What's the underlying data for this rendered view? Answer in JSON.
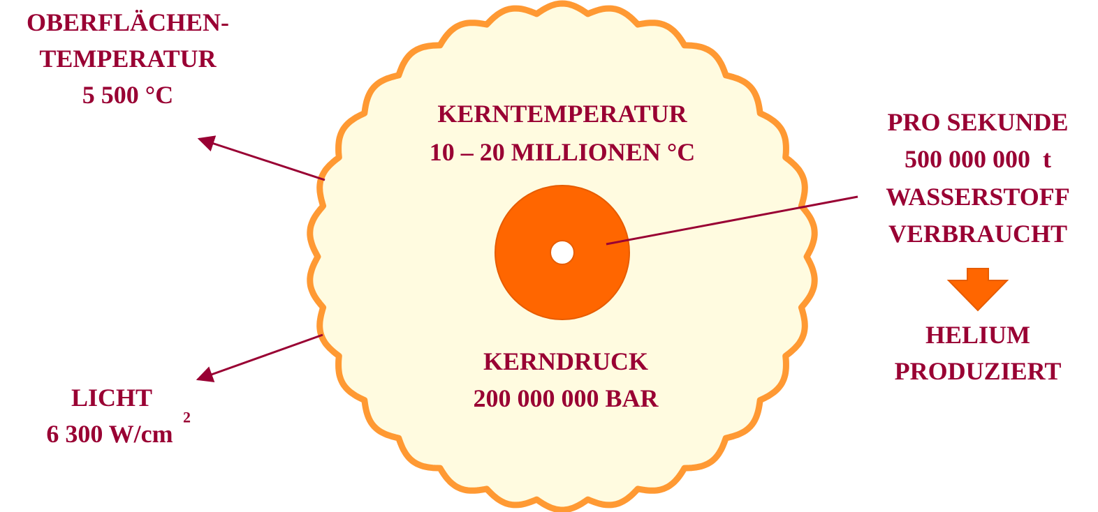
{
  "surface": {
    "lines": [
      "OBERFLÄCHEN-",
      "TEMPERATUR",
      "5 500 °C"
    ]
  },
  "core_temperature": {
    "lines": [
      "KERNTEMPERATUR",
      "10 – 20 MILLIONEN °C"
    ]
  },
  "core_pressure": {
    "lines": [
      "KERNDRUCK",
      "200 000 000 BAR"
    ]
  },
  "light": {
    "lines": [
      "LICHT",
      "6 300 W/cm"
    ],
    "superscript": "2"
  },
  "hydrogen": {
    "lines": [
      "PRO SEKUNDE",
      "500 000 000  t",
      "WASSERSTOFF",
      "VERBRAUCHT"
    ]
  },
  "helium": {
    "lines": [
      "HELIUM",
      "PRODUZIERT"
    ]
  }
}
